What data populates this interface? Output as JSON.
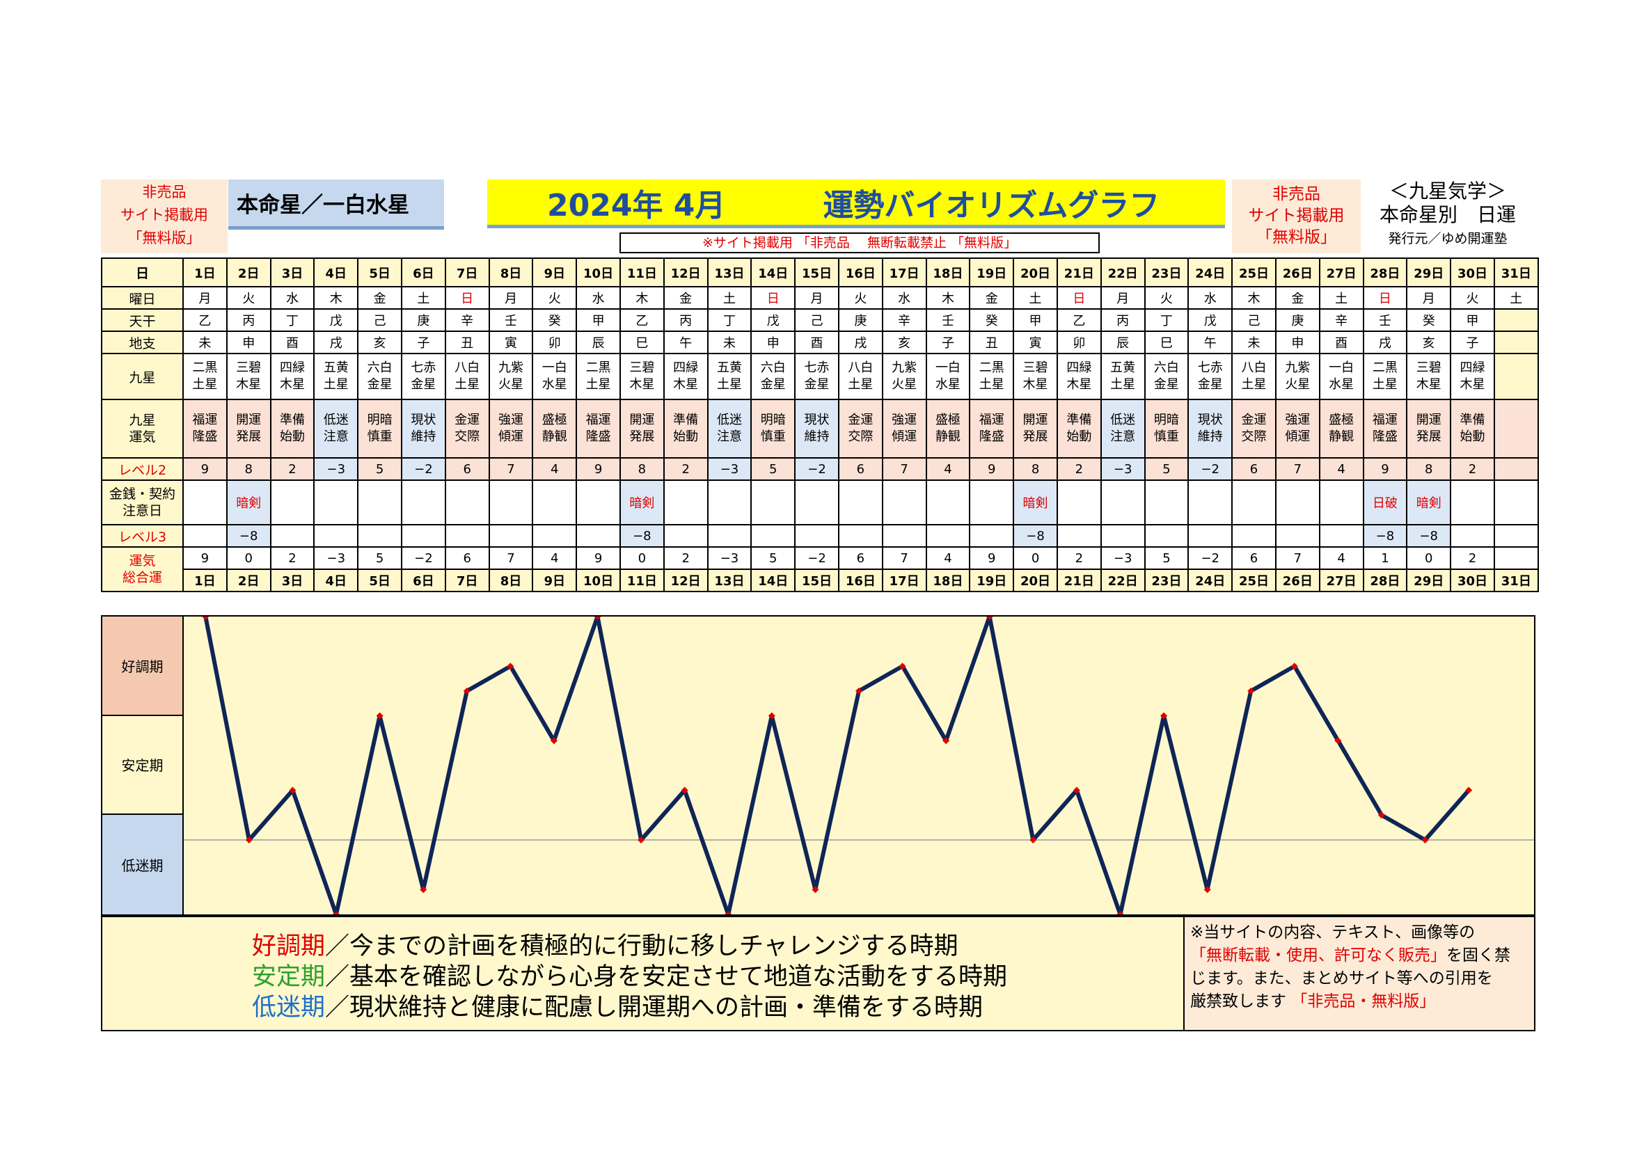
{
  "header": {
    "left_notice": [
      "非売品",
      "サイト掲載用",
      "「無料版」"
    ],
    "honmei": "本命星／一白水星",
    "title_year": "2024年 4月",
    "title_main": "運勢バイオリズムグラフ",
    "strip_notice": "※サイト掲載用 「非売品　 無断転載禁止 「無料版」",
    "right_notice": [
      "非売品",
      "サイト掲載用",
      "「無料版」"
    ],
    "kyusei": [
      "＜九星気学＞",
      "本命星別　日運",
      "発行元／ゆめ開運塾"
    ]
  },
  "labels": {
    "day": "日",
    "weekday": "曜日",
    "tenkan": "天干",
    "chishi": "地支",
    "kyusei": "九星",
    "kyusei_unki": [
      "九星",
      "運気"
    ],
    "level2": "レベル2",
    "money": [
      "金銭・契約",
      "注意日"
    ],
    "level3": "レベル3",
    "total": [
      "運気",
      "総合運"
    ]
  },
  "days": [
    "1日",
    "2日",
    "3日",
    "4日",
    "5日",
    "6日",
    "7日",
    "8日",
    "9日",
    "10日",
    "11日",
    "12日",
    "13日",
    "14日",
    "15日",
    "16日",
    "17日",
    "18日",
    "19日",
    "20日",
    "21日",
    "22日",
    "23日",
    "24日",
    "25日",
    "26日",
    "27日",
    "28日",
    "29日",
    "30日",
    "31日"
  ],
  "weekdays": [
    "月",
    "火",
    "水",
    "木",
    "金",
    "土",
    "日",
    "月",
    "火",
    "水",
    "木",
    "金",
    "土",
    "日",
    "月",
    "火",
    "水",
    "木",
    "金",
    "土",
    "日",
    "月",
    "火",
    "水",
    "木",
    "金",
    "土",
    "日",
    "月",
    "火",
    "土"
  ],
  "tenkan": [
    "乙",
    "丙",
    "丁",
    "戊",
    "己",
    "庚",
    "辛",
    "壬",
    "癸",
    "甲",
    "乙",
    "丙",
    "丁",
    "戊",
    "己",
    "庚",
    "辛",
    "壬",
    "癸",
    "甲",
    "乙",
    "丙",
    "丁",
    "戊",
    "己",
    "庚",
    "辛",
    "壬",
    "癸",
    "甲",
    ""
  ],
  "chishi": [
    "未",
    "申",
    "酉",
    "戌",
    "亥",
    "子",
    "丑",
    "寅",
    "卯",
    "辰",
    "巳",
    "午",
    "未",
    "申",
    "酉",
    "戌",
    "亥",
    "子",
    "丑",
    "寅",
    "卯",
    "辰",
    "巳",
    "午",
    "未",
    "申",
    "酉",
    "戌",
    "亥",
    "子",
    ""
  ],
  "kyusei": [
    [
      "二黒",
      "土星"
    ],
    [
      "三碧",
      "木星"
    ],
    [
      "四緑",
      "木星"
    ],
    [
      "五黄",
      "土星"
    ],
    [
      "六白",
      "金星"
    ],
    [
      "七赤",
      "金星"
    ],
    [
      "八白",
      "土星"
    ],
    [
      "九紫",
      "火星"
    ],
    [
      "一白",
      "水星"
    ],
    [
      "二黒",
      "土星"
    ],
    [
      "三碧",
      "木星"
    ],
    [
      "四緑",
      "木星"
    ],
    [
      "五黄",
      "土星"
    ],
    [
      "六白",
      "金星"
    ],
    [
      "七赤",
      "金星"
    ],
    [
      "八白",
      "土星"
    ],
    [
      "九紫",
      "火星"
    ],
    [
      "一白",
      "水星"
    ],
    [
      "二黒",
      "土星"
    ],
    [
      "三碧",
      "木星"
    ],
    [
      "四緑",
      "木星"
    ],
    [
      "五黄",
      "土星"
    ],
    [
      "六白",
      "金星"
    ],
    [
      "七赤",
      "金星"
    ],
    [
      "八白",
      "土星"
    ],
    [
      "九紫",
      "火星"
    ],
    [
      "一白",
      "水星"
    ],
    [
      "二黒",
      "土星"
    ],
    [
      "三碧",
      "木星"
    ],
    [
      "四緑",
      "木星"
    ],
    [
      "",
      ""
    ]
  ],
  "unki": [
    [
      "福運",
      "隆盛"
    ],
    [
      "開運",
      "発展"
    ],
    [
      "準備",
      "始動"
    ],
    [
      "低迷",
      "注意"
    ],
    [
      "明暗",
      "慎重"
    ],
    [
      "現状",
      "維持"
    ],
    [
      "金運",
      "交際"
    ],
    [
      "強運",
      "傾運"
    ],
    [
      "盛極",
      "静観"
    ],
    [
      "福運",
      "隆盛"
    ],
    [
      "開運",
      "発展"
    ],
    [
      "準備",
      "始動"
    ],
    [
      "低迷",
      "注意"
    ],
    [
      "明暗",
      "慎重"
    ],
    [
      "現状",
      "維持"
    ],
    [
      "金運",
      "交際"
    ],
    [
      "強運",
      "傾運"
    ],
    [
      "盛極",
      "静観"
    ],
    [
      "福運",
      "隆盛"
    ],
    [
      "開運",
      "発展"
    ],
    [
      "準備",
      "始動"
    ],
    [
      "低迷",
      "注意"
    ],
    [
      "明暗",
      "慎重"
    ],
    [
      "現状",
      "維持"
    ],
    [
      "金運",
      "交際"
    ],
    [
      "強運",
      "傾運"
    ],
    [
      "盛極",
      "静観"
    ],
    [
      "福運",
      "隆盛"
    ],
    [
      "開運",
      "発展"
    ],
    [
      "準備",
      "始動"
    ],
    [
      "",
      ""
    ]
  ],
  "level2": [
    "9",
    "8",
    "2",
    "−3",
    "5",
    "−2",
    "6",
    "7",
    "4",
    "9",
    "8",
    "2",
    "−3",
    "5",
    "−2",
    "6",
    "7",
    "4",
    "9",
    "8",
    "2",
    "−3",
    "5",
    "−2",
    "6",
    "7",
    "4",
    "9",
    "8",
    "2",
    ""
  ],
  "money": [
    "",
    "暗剣",
    "",
    "",
    "",
    "",
    "",
    "",
    "",
    "",
    "暗剣",
    "",
    "",
    "",
    "",
    "",
    "",
    "",
    "",
    "暗剣",
    "",
    "",
    "",
    "",
    "",
    "",
    "",
    "日破",
    "暗剣",
    "",
    ""
  ],
  "level3": [
    "",
    "−8",
    "",
    "",
    "",
    "",
    "",
    "",
    "",
    "",
    "−8",
    "",
    "",
    "",
    "",
    "",
    "",
    "",
    "",
    "−8",
    "",
    "",
    "",
    "",
    "",
    "",
    "",
    "−8",
    "−8",
    "",
    ""
  ],
  "total": [
    "9",
    "0",
    "2",
    "−3",
    "5",
    "−2",
    "6",
    "7",
    "4",
    "9",
    "0",
    "2",
    "−3",
    "5",
    "−2",
    "6",
    "7",
    "4",
    "9",
    "0",
    "2",
    "−3",
    "5",
    "−2",
    "6",
    "7",
    "4",
    "1",
    "0",
    "2",
    ""
  ],
  "graph": {
    "bands": [
      "好調期",
      "安定期",
      "低迷期"
    ]
  },
  "legend": {
    "good_term": "好調期",
    "good_text": "／今までの計画を積極的に行動に移しチャレンジする時期",
    "stable_term": "安定期",
    "stable_text": "／基本を確認しながら心身を安定させて地道な活動をする時期",
    "low_term": "低迷期",
    "low_text": "／現状維持と健康に配慮し開運期への計画・準備をする時期",
    "note1": "※当サイトの内容、テキスト、画像等の",
    "note2": "「無断転載・使用、許可なく販売」",
    "note3": "を固く禁",
    "note4": "じます。また、まとめサイト等への引用を",
    "note5": "厳禁致します ",
    "note6": "「非売品・無料版」"
  },
  "colors": {
    "line": "#0f2558",
    "marker": "#e00000",
    "plot_bg": "#fff8cc",
    "good_band": "#f4c9b0",
    "stable_band": "#fff8cc",
    "low_band": "#c5d8ee"
  },
  "chart_data": {
    "type": "line",
    "title": "運勢バイオリズムグラフ",
    "categories": [
      "1日",
      "2日",
      "3日",
      "4日",
      "5日",
      "6日",
      "7日",
      "8日",
      "9日",
      "10日",
      "11日",
      "12日",
      "13日",
      "14日",
      "15日",
      "16日",
      "17日",
      "18日",
      "19日",
      "20日",
      "21日",
      "22日",
      "23日",
      "24日",
      "25日",
      "26日",
      "27日",
      "28日",
      "29日",
      "30日"
    ],
    "series": [
      {
        "name": "総合運",
        "values": [
          9,
          0,
          2,
          -3,
          5,
          -2,
          6,
          7,
          4,
          9,
          0,
          2,
          -3,
          5,
          -2,
          6,
          7,
          4,
          9,
          0,
          2,
          -3,
          5,
          -2,
          6,
          7,
          4,
          1,
          0,
          2
        ]
      }
    ],
    "ylim": [
      -3,
      9
    ],
    "bands": [
      "好調期",
      "安定期",
      "低迷期"
    ],
    "baseline": 0,
    "grid": false
  }
}
